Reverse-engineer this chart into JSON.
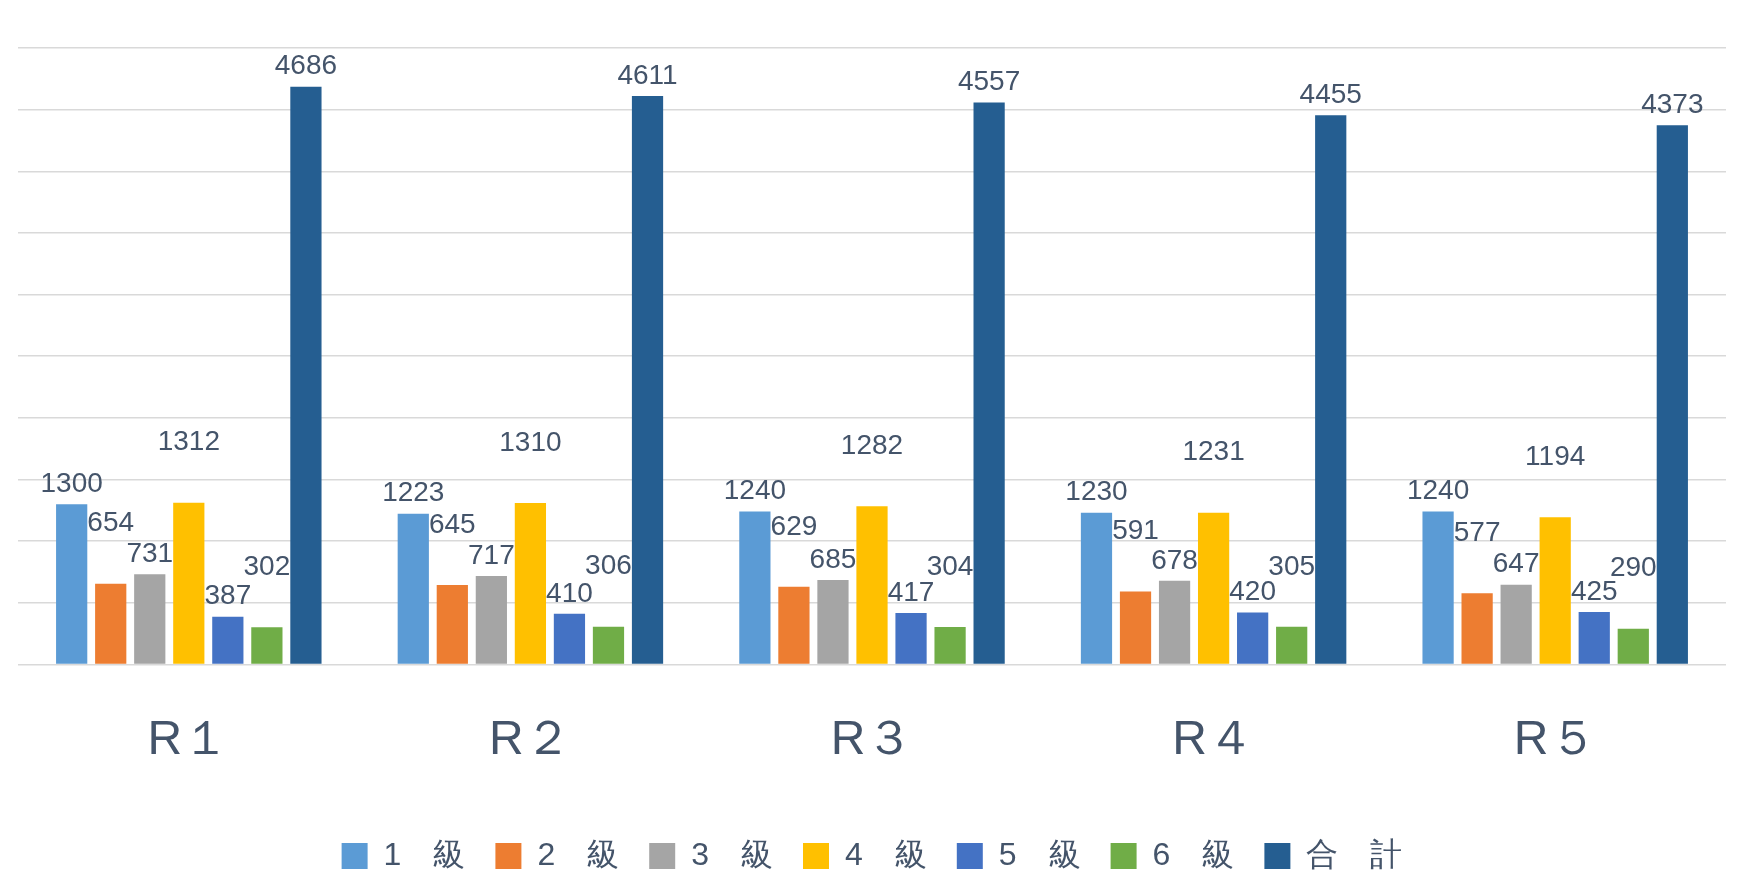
{
  "chart_data": {
    "type": "bar",
    "categories": [
      "R１",
      "R２",
      "R３",
      "R４",
      "R５"
    ],
    "series": [
      {
        "name": "1　級",
        "color": "#5b9bd5",
        "values": [
          1300,
          1223,
          1240,
          1230,
          1240
        ]
      },
      {
        "name": "2　級",
        "color": "#ed7d31",
        "values": [
          654,
          645,
          629,
          591,
          577
        ]
      },
      {
        "name": "3　級",
        "color": "#a5a5a5",
        "values": [
          731,
          717,
          685,
          678,
          647
        ]
      },
      {
        "name": "4　級",
        "color": "#ffc000",
        "values": [
          1312,
          1310,
          1282,
          1231,
          1194
        ]
      },
      {
        "name": "5　級",
        "color": "#4472c4",
        "values": [
          387,
          410,
          417,
          420,
          425
        ]
      },
      {
        "name": "6　級",
        "color": "#70ad47",
        "values": [
          302,
          306,
          304,
          305,
          290
        ]
      },
      {
        "name": "合　計",
        "color": "#255e91",
        "values": [
          4686,
          4611,
          4557,
          4455,
          4373
        ]
      }
    ],
    "ylim": [
      0,
      5000
    ],
    "yticks": [
      {
        "value": 0,
        "label": null
      },
      {
        "value": 500,
        "label": null
      },
      {
        "value": 1000,
        "label": null
      },
      {
        "value": 1500,
        "label": null
      },
      {
        "value": 2000,
        "label": null
      },
      {
        "value": 2500,
        "label": null
      },
      {
        "value": 3000,
        "label": null
      },
      {
        "value": 3500,
        "label": null
      },
      {
        "value": 4000,
        "label": null
      },
      {
        "value": 4500,
        "label": null
      },
      {
        "value": 5000,
        "label": null
      }
    ],
    "tick_labels": "x",
    "grid": "y",
    "legend": "bottom",
    "data_labels": true
  }
}
